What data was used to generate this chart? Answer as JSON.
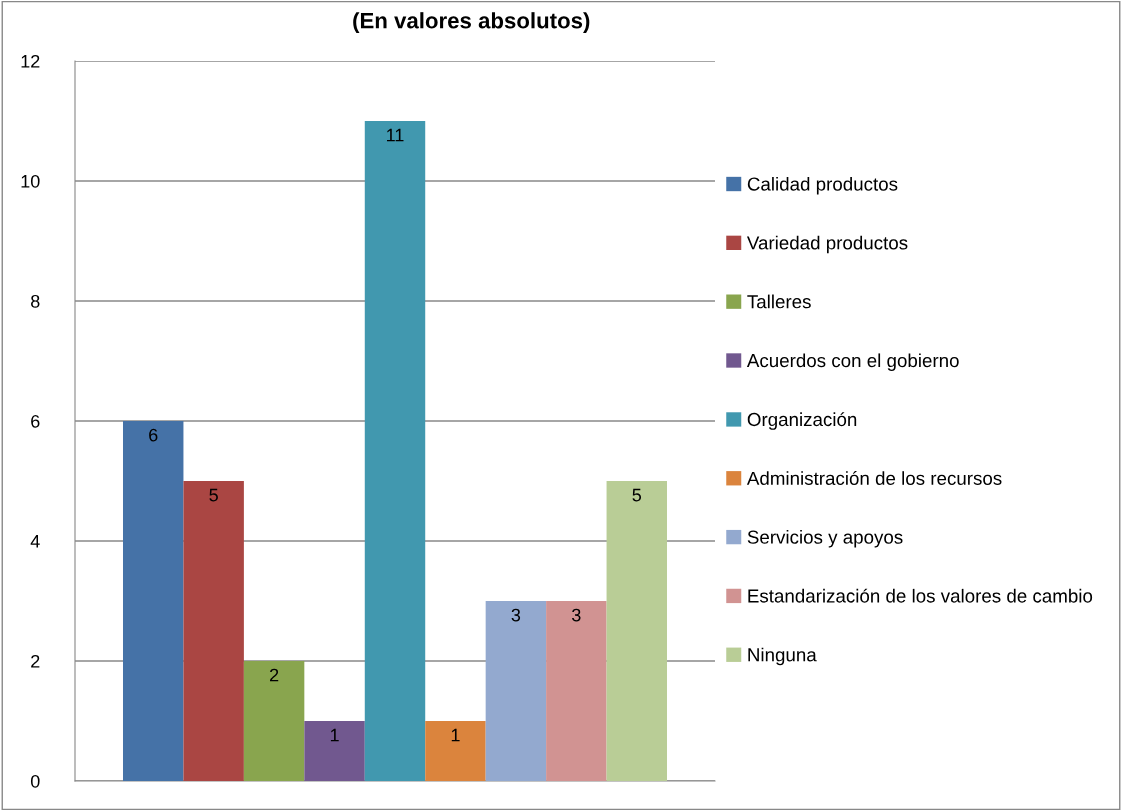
{
  "chart_data": {
    "type": "bar",
    "title": "(En valores absolutos)",
    "categories": [
      null
    ],
    "series": [
      {
        "name": "Calidad productos",
        "color": "#4572a7",
        "values": [
          6
        ]
      },
      {
        "name": "Variedad productos",
        "color": "#aa4643",
        "values": [
          5
        ]
      },
      {
        "name": "Talleres",
        "color": "#89a54e",
        "values": [
          2
        ]
      },
      {
        "name": "Acuerdos con el gobierno",
        "color": "#71588f",
        "values": [
          1
        ]
      },
      {
        "name": "Organización",
        "color": "#4198af",
        "values": [
          11
        ]
      },
      {
        "name": "Administración de los recursos",
        "color": "#db843d",
        "values": [
          1
        ]
      },
      {
        "name": "Servicios y apoyos",
        "color": "#93a9cf",
        "values": [
          3
        ]
      },
      {
        "name": "Estandarización de los valores de cambio",
        "color": "#d19392",
        "values": [
          3
        ]
      },
      {
        "name": "Ninguna",
        "color": "#b9cd96",
        "values": [
          5
        ]
      }
    ],
    "ylim": [
      0,
      12
    ],
    "yticks": [
      0,
      2,
      4,
      6,
      8,
      10,
      12
    ],
    "grid": "y",
    "legend": "right",
    "data_labels": true
  }
}
